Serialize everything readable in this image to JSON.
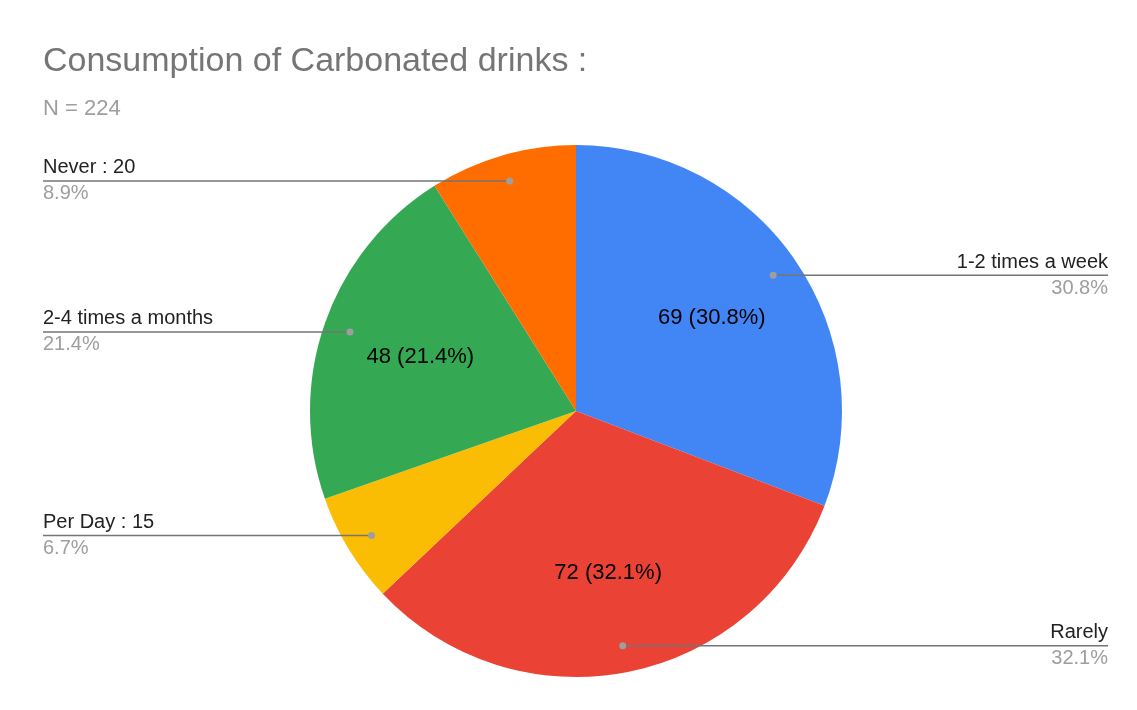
{
  "chart_data": {
    "type": "pie",
    "title": "Consumption of Carbonated drinks :",
    "subtitle": "N = 224",
    "categories": [
      "1-2 times a week",
      "Rarely",
      "Per Day : 15",
      "2-4 times a months",
      "Never : 20"
    ],
    "values": [
      69,
      72,
      15,
      48,
      20
    ],
    "colors": [
      "#4285f4",
      "#ea4335",
      "#fbbc04",
      "#34a853",
      "#ff6d01"
    ],
    "value_labels": [
      "69 (30.8%)",
      "72 (32.1%)",
      null,
      "48 (21.4%)",
      null
    ],
    "annotations": [
      "30.8%",
      "32.1%",
      "6.7%",
      "21.4%",
      "8.9%"
    ]
  }
}
